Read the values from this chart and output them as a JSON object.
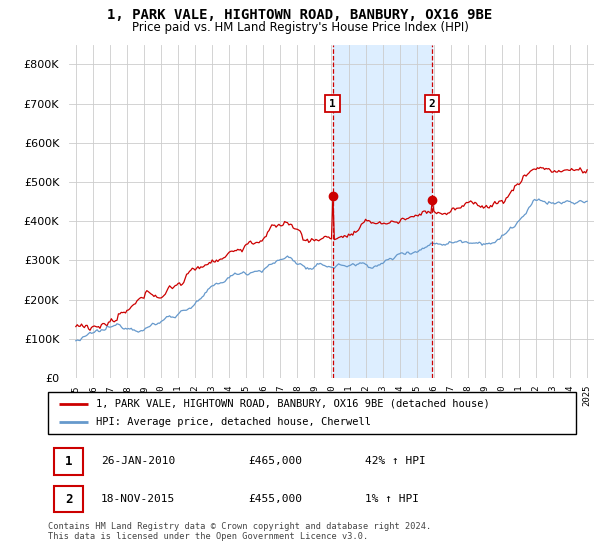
{
  "title": "1, PARK VALE, HIGHTOWN ROAD, BANBURY, OX16 9BE",
  "subtitle": "Price paid vs. HM Land Registry's House Price Index (HPI)",
  "legend_line1": "1, PARK VALE, HIGHTOWN ROAD, BANBURY, OX16 9BE (detached house)",
  "legend_line2": "HPI: Average price, detached house, Cherwell",
  "transaction1_date": "26-JAN-2010",
  "transaction1_price": "£465,000",
  "transaction1_hpi": "42% ↑ HPI",
  "transaction1_x": 2010.07,
  "transaction1_y": 465000,
  "transaction2_date": "18-NOV-2015",
  "transaction2_price": "£455,000",
  "transaction2_hpi": "1% ↑ HPI",
  "transaction2_x": 2015.89,
  "transaction2_y": 455000,
  "footnote": "Contains HM Land Registry data © Crown copyright and database right 2024.\nThis data is licensed under the Open Government Licence v3.0.",
  "ylim": [
    0,
    850000
  ],
  "xlim": [
    1994.6,
    2025.4
  ],
  "yticks": [
    0,
    100000,
    200000,
    300000,
    400000,
    500000,
    600000,
    700000,
    800000
  ],
  "red_color": "#cc0000",
  "blue_color": "#6699cc",
  "span_color": "#ddeeff",
  "background_color": "#ffffff",
  "grid_color": "#cccccc"
}
